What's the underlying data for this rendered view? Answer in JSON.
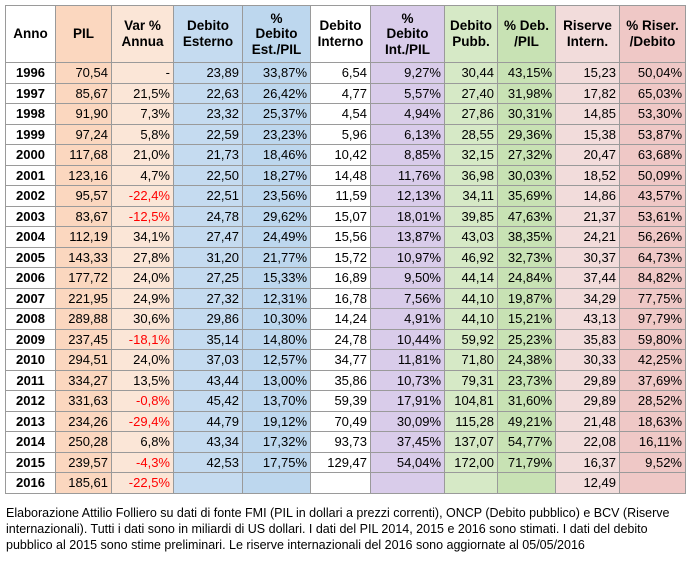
{
  "table": {
    "headers": [
      "Anno",
      "PIL",
      "Var %\nAnnua",
      "Debito\nEsterno",
      "%\nDebito\nEst./PIL",
      "Debito\nInterno",
      "%\nDebito\nInt./PIL",
      "Debito\nPubb.",
      "% Deb.\n/PIL",
      "Riserve\nIntern.",
      "% Riser.\n/Debito"
    ],
    "rows": [
      [
        "1996",
        "70,54",
        "-",
        "23,89",
        "33,87%",
        "6,54",
        "9,27%",
        "30,44",
        "43,15%",
        "15,23",
        "50,04%"
      ],
      [
        "1997",
        "85,67",
        "21,5%",
        "22,63",
        "26,42%",
        "4,77",
        "5,57%",
        "27,40",
        "31,98%",
        "17,82",
        "65,03%"
      ],
      [
        "1998",
        "91,90",
        "7,3%",
        "23,32",
        "25,37%",
        "4,54",
        "4,94%",
        "27,86",
        "30,31%",
        "14,85",
        "53,30%"
      ],
      [
        "1999",
        "97,24",
        "5,8%",
        "22,59",
        "23,23%",
        "5,96",
        "6,13%",
        "28,55",
        "29,36%",
        "15,38",
        "53,87%"
      ],
      [
        "2000",
        "117,68",
        "21,0%",
        "21,73",
        "18,46%",
        "10,42",
        "8,85%",
        "32,15",
        "27,32%",
        "20,47",
        "63,68%"
      ],
      [
        "2001",
        "123,16",
        "4,7%",
        "22,50",
        "18,27%",
        "14,48",
        "11,76%",
        "36,98",
        "30,03%",
        "18,52",
        "50,09%"
      ],
      [
        "2002",
        "95,57",
        "-22,4%",
        "22,51",
        "23,56%",
        "11,59",
        "12,13%",
        "34,11",
        "35,69%",
        "14,86",
        "43,57%"
      ],
      [
        "2003",
        "83,67",
        "-12,5%",
        "24,78",
        "29,62%",
        "15,07",
        "18,01%",
        "39,85",
        "47,63%",
        "21,37",
        "53,61%"
      ],
      [
        "2004",
        "112,19",
        "34,1%",
        "27,47",
        "24,49%",
        "15,56",
        "13,87%",
        "43,03",
        "38,35%",
        "24,21",
        "56,26%"
      ],
      [
        "2005",
        "143,33",
        "27,8%",
        "31,20",
        "21,77%",
        "15,72",
        "10,97%",
        "46,92",
        "32,73%",
        "30,37",
        "64,73%"
      ],
      [
        "2006",
        "177,72",
        "24,0%",
        "27,25",
        "15,33%",
        "16,89",
        "9,50%",
        "44,14",
        "24,84%",
        "37,44",
        "84,82%"
      ],
      [
        "2007",
        "221,95",
        "24,9%",
        "27,32",
        "12,31%",
        "16,78",
        "7,56%",
        "44,10",
        "19,87%",
        "34,29",
        "77,75%"
      ],
      [
        "2008",
        "289,88",
        "30,6%",
        "29,86",
        "10,30%",
        "14,24",
        "4,91%",
        "44,10",
        "15,21%",
        "43,13",
        "97,79%"
      ],
      [
        "2009",
        "237,45",
        "-18,1%",
        "35,14",
        "14,80%",
        "24,78",
        "10,44%",
        "59,92",
        "25,23%",
        "35,83",
        "59,80%"
      ],
      [
        "2010",
        "294,51",
        "24,0%",
        "37,03",
        "12,57%",
        "34,77",
        "11,81%",
        "71,80",
        "24,38%",
        "30,33",
        "42,25%"
      ],
      [
        "2011",
        "334,27",
        "13,5%",
        "43,44",
        "13,00%",
        "35,86",
        "10,73%",
        "79,31",
        "23,73%",
        "29,89",
        "37,69%"
      ],
      [
        "2012",
        "331,63",
        "-0,8%",
        "45,42",
        "13,70%",
        "59,39",
        "17,91%",
        "104,81",
        "31,60%",
        "29,89",
        "28,52%"
      ],
      [
        "2013",
        "234,26",
        "-29,4%",
        "44,79",
        "19,12%",
        "70,49",
        "30,09%",
        "115,28",
        "49,21%",
        "21,48",
        "18,63%"
      ],
      [
        "2014",
        "250,28",
        "6,8%",
        "43,34",
        "17,32%",
        "93,73",
        "37,45%",
        "137,07",
        "54,77%",
        "22,08",
        "16,11%"
      ],
      [
        "2015",
        "239,57",
        "-4,3%",
        "42,53",
        "17,75%",
        "129,47",
        "54,04%",
        "172,00",
        "71,79%",
        "16,37",
        "9,52%"
      ],
      [
        "2016",
        "185,61",
        "-22,5%",
        "",
        "",
        "",
        "",
        "",
        "",
        "12,49",
        ""
      ]
    ]
  },
  "colors": {
    "col_backgrounds": [
      "#ffffff",
      "#fbd7bf",
      "#fbe6d7",
      "#c5dbf0",
      "#bdd7ee",
      "#ffffff",
      "#d9ccea",
      "#d6e9c6",
      "#c8e2b4",
      "#f2dcdb",
      "#efc8c6"
    ],
    "negative_text": "#ff0000",
    "grid_lines": "#9a9a9a"
  },
  "note": "Elaborazione Attilio Folliero su dati di fonte FMI (PIL in dollari a prezzi correnti), ONCP (Debito pubblico) e BCV (Riserve internazionali). Tutti i dati sono in miliardi di US dollari. I dati del PIL 2014, 2015 e 2016 sono stimati. I dati del debito pubblico al 2015 sono stime preliminari. Le riserve internazionali del 2016 sono aggiornate al 05/05/2016"
}
